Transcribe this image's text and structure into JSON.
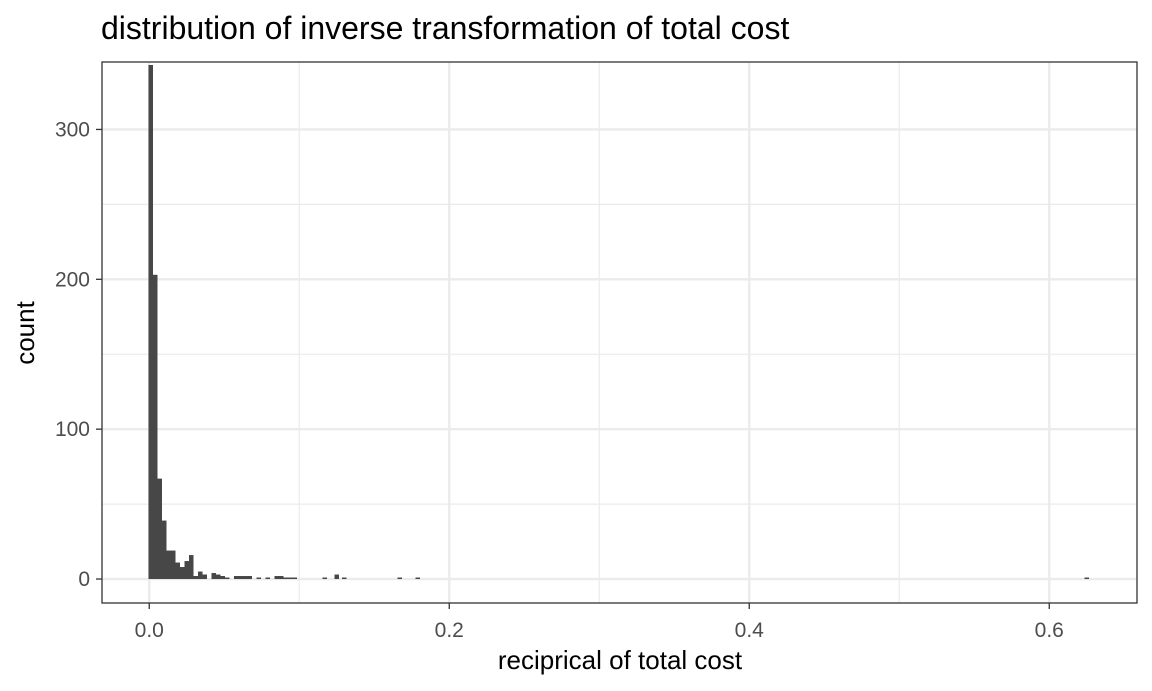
{
  "chart_data": {
    "type": "bar",
    "title": "distribution of inverse transformation of total cost",
    "xlabel": "reciprical of total cost",
    "ylabel": "count",
    "xlim": [
      -0.0315,
      0.6585
    ],
    "ylim": [
      -16,
      345
    ],
    "x_ticks": [
      0.0,
      0.2,
      0.4,
      0.6
    ],
    "x_tick_labels": [
      "0.0",
      "0.2",
      "0.4",
      "0.6"
    ],
    "x_minor": [
      0.1,
      0.3,
      0.5
    ],
    "y_ticks": [
      0,
      100,
      200,
      300
    ],
    "y_tick_labels": [
      "0",
      "100",
      "200",
      "300"
    ],
    "y_minor": [
      50,
      150,
      250
    ],
    "grid": true,
    "bin_width": 0.003,
    "bar_color": "#474747",
    "grid_color": "#ebebeb",
    "bins": [
      {
        "x": 0.001,
        "count": 343
      },
      {
        "x": 0.004,
        "count": 203
      },
      {
        "x": 0.007,
        "count": 67
      },
      {
        "x": 0.01,
        "count": 39
      },
      {
        "x": 0.013,
        "count": 19
      },
      {
        "x": 0.016,
        "count": 19
      },
      {
        "x": 0.019,
        "count": 11
      },
      {
        "x": 0.022,
        "count": 8
      },
      {
        "x": 0.025,
        "count": 12
      },
      {
        "x": 0.028,
        "count": 16
      },
      {
        "x": 0.031,
        "count": 2
      },
      {
        "x": 0.034,
        "count": 5
      },
      {
        "x": 0.037,
        "count": 3
      },
      {
        "x": 0.043,
        "count": 4
      },
      {
        "x": 0.046,
        "count": 3
      },
      {
        "x": 0.049,
        "count": 2
      },
      {
        "x": 0.052,
        "count": 1
      },
      {
        "x": 0.058,
        "count": 2
      },
      {
        "x": 0.061,
        "count": 2
      },
      {
        "x": 0.064,
        "count": 2
      },
      {
        "x": 0.067,
        "count": 2
      },
      {
        "x": 0.073,
        "count": 1
      },
      {
        "x": 0.079,
        "count": 1
      },
      {
        "x": 0.085,
        "count": 2
      },
      {
        "x": 0.088,
        "count": 2
      },
      {
        "x": 0.091,
        "count": 1
      },
      {
        "x": 0.094,
        "count": 1
      },
      {
        "x": 0.097,
        "count": 1
      },
      {
        "x": 0.117,
        "count": 1
      },
      {
        "x": 0.125,
        "count": 3
      },
      {
        "x": 0.13,
        "count": 1
      },
      {
        "x": 0.167,
        "count": 1
      },
      {
        "x": 0.179,
        "count": 1
      },
      {
        "x": 0.625,
        "count": 1
      }
    ]
  }
}
